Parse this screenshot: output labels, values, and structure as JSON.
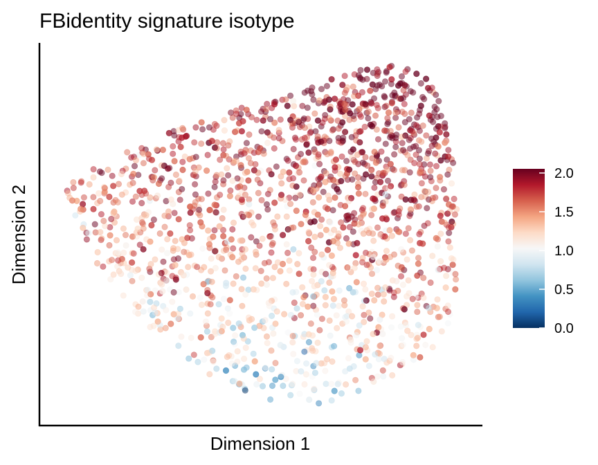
{
  "chart_data": {
    "type": "scatter",
    "title": "FBidentity signature isotype",
    "xlabel": "Dimension 1",
    "ylabel": "Dimension 2",
    "x_ticks_shown": false,
    "y_ticks_shown": false,
    "grid": false,
    "legend_position": "right",
    "colorbar": {
      "min": 0.0,
      "max": 2.0,
      "ticks": [
        "0.0",
        "0.5",
        "1.0",
        "1.5",
        "2.0"
      ],
      "colors": [
        "#053061",
        "#2166ac",
        "#4393c3",
        "#92c5de",
        "#d1e5f0",
        "#f7f7f7",
        "#fddbc7",
        "#f4a582",
        "#d6604d",
        "#b2182b",
        "#67001f"
      ]
    },
    "point_opacity": 0.5,
    "point_count_estimate": 2000,
    "score_regions": [
      {
        "region": "upper right",
        "approx_score": 1.7
      },
      {
        "region": "upper left",
        "approx_score": 1.5
      },
      {
        "region": "lower left",
        "approx_score": 1.2
      },
      {
        "region": "lower middle",
        "approx_score": 1.0
      }
    ]
  }
}
